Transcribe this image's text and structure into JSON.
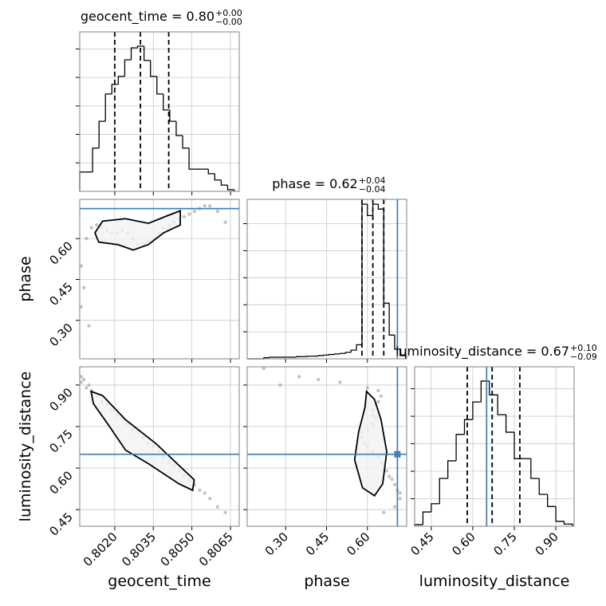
{
  "chart_data": {
    "type": "corner",
    "grid": true,
    "hist_color": "#000000",
    "truth_color": "#4682b4",
    "point_color": "#555555",
    "parameters": [
      {
        "label": "geocent_time",
        "title": {
          "main": "geocent_time = 0.80",
          "sup": "+0.00",
          "sub": "−0.00"
        },
        "lim": [
          0.80064,
          0.80684
        ],
        "ticks": [
          {
            "value": 0.802,
            "label": "0.8020"
          },
          {
            "value": 0.8035,
            "label": "0.8035"
          },
          {
            "value": 0.805,
            "label": "0.8050"
          },
          {
            "value": 0.8065,
            "label": "0.8065"
          }
        ],
        "bins": [
          0.80064,
          0.80089,
          0.80114,
          0.80139,
          0.80164,
          0.80189,
          0.80214,
          0.80239,
          0.80264,
          0.80289,
          0.80314,
          0.80339,
          0.80364,
          0.80389,
          0.80414,
          0.80439,
          0.80464,
          0.80489,
          0.80514,
          0.80539,
          0.80564,
          0.80589,
          0.80614,
          0.80639,
          0.80664
        ],
        "counts": [
          34,
          34,
          76,
          123,
          171,
          188,
          202,
          231,
          252,
          255,
          230,
          202,
          171,
          143,
          123,
          98,
          76,
          39,
          39,
          39,
          31,
          20,
          11,
          3
        ],
        "hist_ylim": [
          0,
          280
        ],
        "hist_yticks": [
          50,
          100,
          150,
          200,
          250
        ],
        "quantiles": [
          0.802,
          0.803,
          0.8041
        ],
        "samples": [
          0.8007,
          0.8009,
          0.8011,
          0.8013,
          0.8015,
          0.8017,
          0.8019,
          0.8021,
          0.8023,
          0.8025,
          0.8027,
          0.8029,
          0.8031,
          0.8033,
          0.8035,
          0.8037,
          0.8039,
          0.8041,
          0.8043,
          0.8045,
          0.8047,
          0.8049,
          0.8051,
          0.8053,
          0.8055,
          0.8057,
          0.806,
          0.8063,
          0.8007,
          0.8006,
          0.8008,
          0.801
        ]
      },
      {
        "label": "phase",
        "title": {
          "main": "phase = 0.62",
          "sup": "+0.04",
          "sub": "−0.04"
        },
        "lim": [
          0.159,
          0.744
        ],
        "ticks": [
          {
            "value": 0.3,
            "label": "0.30"
          },
          {
            "value": 0.45,
            "label": "0.45"
          },
          {
            "value": 0.6,
            "label": "0.60"
          }
        ],
        "bins": [
          0.16,
          0.18,
          0.2,
          0.22,
          0.24,
          0.26,
          0.28,
          0.3,
          0.32,
          0.34,
          0.36,
          0.38,
          0.4,
          0.42,
          0.44,
          0.46,
          0.48,
          0.5,
          0.52,
          0.54,
          0.56,
          0.58,
          0.6,
          0.62,
          0.64,
          0.66,
          0.68,
          0.7,
          0.72,
          0.74
        ],
        "counts": [
          0,
          0,
          0,
          2,
          3,
          3,
          3,
          3,
          3,
          4,
          4,
          5,
          5,
          6,
          7,
          8,
          9,
          10,
          12,
          16,
          26,
          286,
          265,
          286,
          277,
          103,
          44,
          18,
          6
        ],
        "hist_ylim": [
          0,
          295
        ],
        "hist_yticks": [
          50,
          100,
          150,
          200,
          250
        ],
        "quantiles": [
          0.58,
          0.62,
          0.66
        ],
        "truth": 0.71,
        "samples": [
          0.5,
          0.6,
          0.64,
          0.65,
          0.64,
          0.63,
          0.62,
          0.62,
          0.63,
          0.62,
          0.6,
          0.58,
          0.58,
          0.59,
          0.6,
          0.62,
          0.64,
          0.65,
          0.66,
          0.67,
          0.68,
          0.69,
          0.7,
          0.71,
          0.72,
          0.72,
          0.7,
          0.66,
          0.35,
          0.22,
          0.42,
          0.28
        ],
        "contours": [
          {
            "x": [
              0.80123,
              0.80153,
              0.80242,
              0.80331,
              0.80405,
              0.80455,
              0.80455,
              0.8039,
              0.80331,
              0.80272,
              0.80212,
              0.80138
            ],
            "y": [
              0.621,
              0.664,
              0.673,
              0.656,
              0.684,
              0.702,
              0.65,
              0.621,
              0.578,
              0.558,
              0.578,
              0.587
            ]
          }
        ]
      },
      {
        "label": "luminosity_distance",
        "title": {
          "main": "luminosity_distance = 0.67",
          "sup": "+0.10",
          "sub": "−0.09"
        },
        "lim": [
          0.39,
          0.966
        ],
        "ticks": [
          {
            "value": 0.45,
            "label": "0.45"
          },
          {
            "value": 0.6,
            "label": "0.60"
          },
          {
            "value": 0.75,
            "label": "0.75"
          },
          {
            "value": 0.9,
            "label": "0.90"
          }
        ],
        "bins": [
          0.39,
          0.42,
          0.45,
          0.48,
          0.51,
          0.54,
          0.57,
          0.6,
          0.63,
          0.66,
          0.69,
          0.72,
          0.75,
          0.78,
          0.81,
          0.84,
          0.87,
          0.9,
          0.93,
          0.96
        ],
        "counts": [
          3,
          26,
          41,
          87,
          119,
          167,
          194,
          226,
          264,
          239,
          203,
          171,
          123,
          123,
          87,
          58,
          36,
          9,
          4
        ],
        "hist_ylim": [
          0,
          290
        ],
        "hist_yticks": [
          50,
          100,
          150,
          200,
          250
        ],
        "quantiles": [
          0.58,
          0.67,
          0.77
        ],
        "truth": 0.65,
        "samples": [
          0.91,
          0.89,
          0.88,
          0.86,
          0.84,
          0.83,
          0.81,
          0.79,
          0.78,
          0.76,
          0.74,
          0.73,
          0.71,
          0.69,
          0.68,
          0.66,
          0.64,
          0.62,
          0.61,
          0.59,
          0.57,
          0.56,
          0.54,
          0.52,
          0.51,
          0.49,
          0.46,
          0.44,
          0.93,
          0.96,
          0.92,
          0.9
        ],
        "contours": [
          {
            "x": [
              0.80108,
              0.80153,
              0.80242,
              0.80361,
              0.80509,
              0.80503,
              0.8045,
              0.80331,
              0.80242,
              0.80183,
              0.80117
            ],
            "y": [
              0.877,
              0.862,
              0.775,
              0.688,
              0.558,
              0.52,
              0.543,
              0.616,
              0.665,
              0.746,
              0.833
            ]
          },
          {
            "x": [
              0.597,
              0.626,
              0.65,
              0.671,
              0.656,
              0.626,
              0.582,
              0.553,
              0.568,
              0.591
            ],
            "y": [
              0.877,
              0.848,
              0.775,
              0.659,
              0.543,
              0.5,
              0.529,
              0.63,
              0.732,
              0.819
            ]
          }
        ]
      }
    ]
  }
}
